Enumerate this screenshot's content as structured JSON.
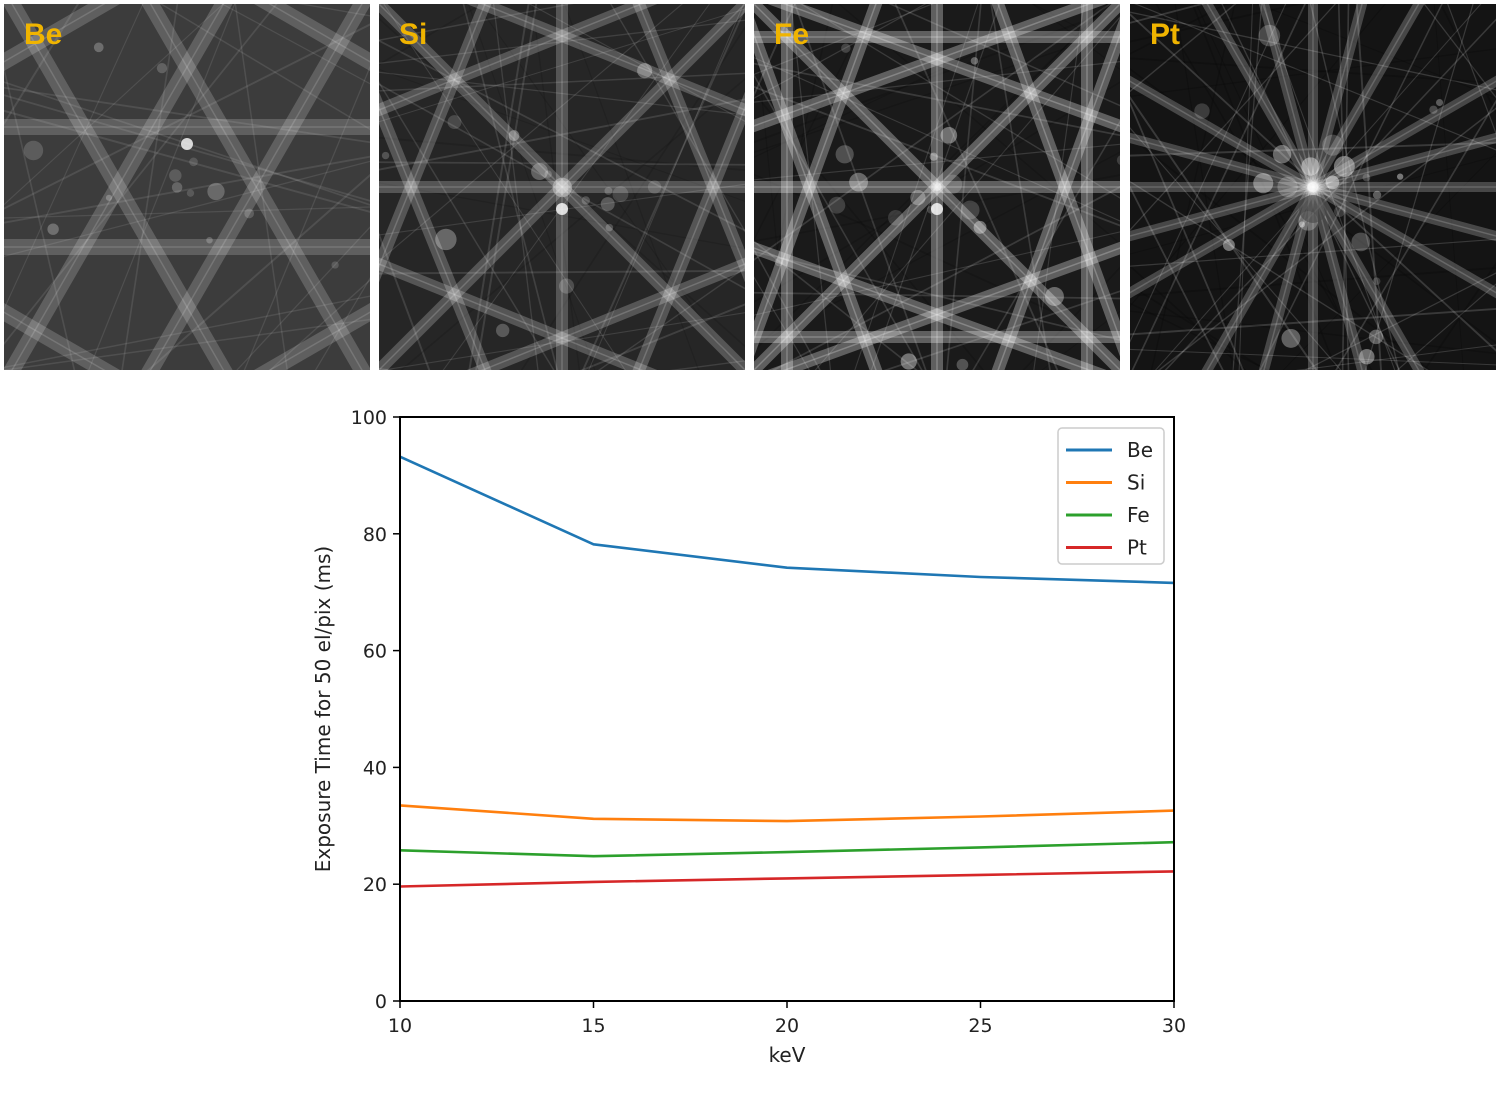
{
  "panels": [
    {
      "label": "Be",
      "element": "Be"
    },
    {
      "label": "Si",
      "element": "Si"
    },
    {
      "label": "Fe",
      "element": "Fe"
    },
    {
      "label": "Pt",
      "element": "Pt"
    }
  ],
  "label_color": "#f0b400",
  "chart_data": {
    "type": "line",
    "title": "",
    "xlabel": "keV",
    "ylabel": "Exposure Time for 50 el/pix (ms)",
    "x": [
      10,
      15,
      20,
      25,
      30
    ],
    "xlim": [
      10,
      30
    ],
    "ylim": [
      0,
      100
    ],
    "xticks": [
      10,
      15,
      20,
      25,
      30
    ],
    "yticks": [
      0,
      20,
      40,
      60,
      80,
      100
    ],
    "grid": false,
    "legend_position": "top-right",
    "series": [
      {
        "name": "Be",
        "color": "#1f77b4",
        "values": [
          93.2,
          78.2,
          74.2,
          72.6,
          71.6
        ]
      },
      {
        "name": "Si",
        "color": "#ff7f0e",
        "values": [
          33.5,
          31.2,
          30.8,
          31.6,
          32.6
        ]
      },
      {
        "name": "Fe",
        "color": "#2ca02c",
        "values": [
          25.8,
          24.8,
          25.5,
          26.3,
          27.2
        ]
      },
      {
        "name": "Pt",
        "color": "#d62728",
        "values": [
          19.6,
          20.4,
          21.0,
          21.6,
          22.2
        ]
      }
    ]
  }
}
